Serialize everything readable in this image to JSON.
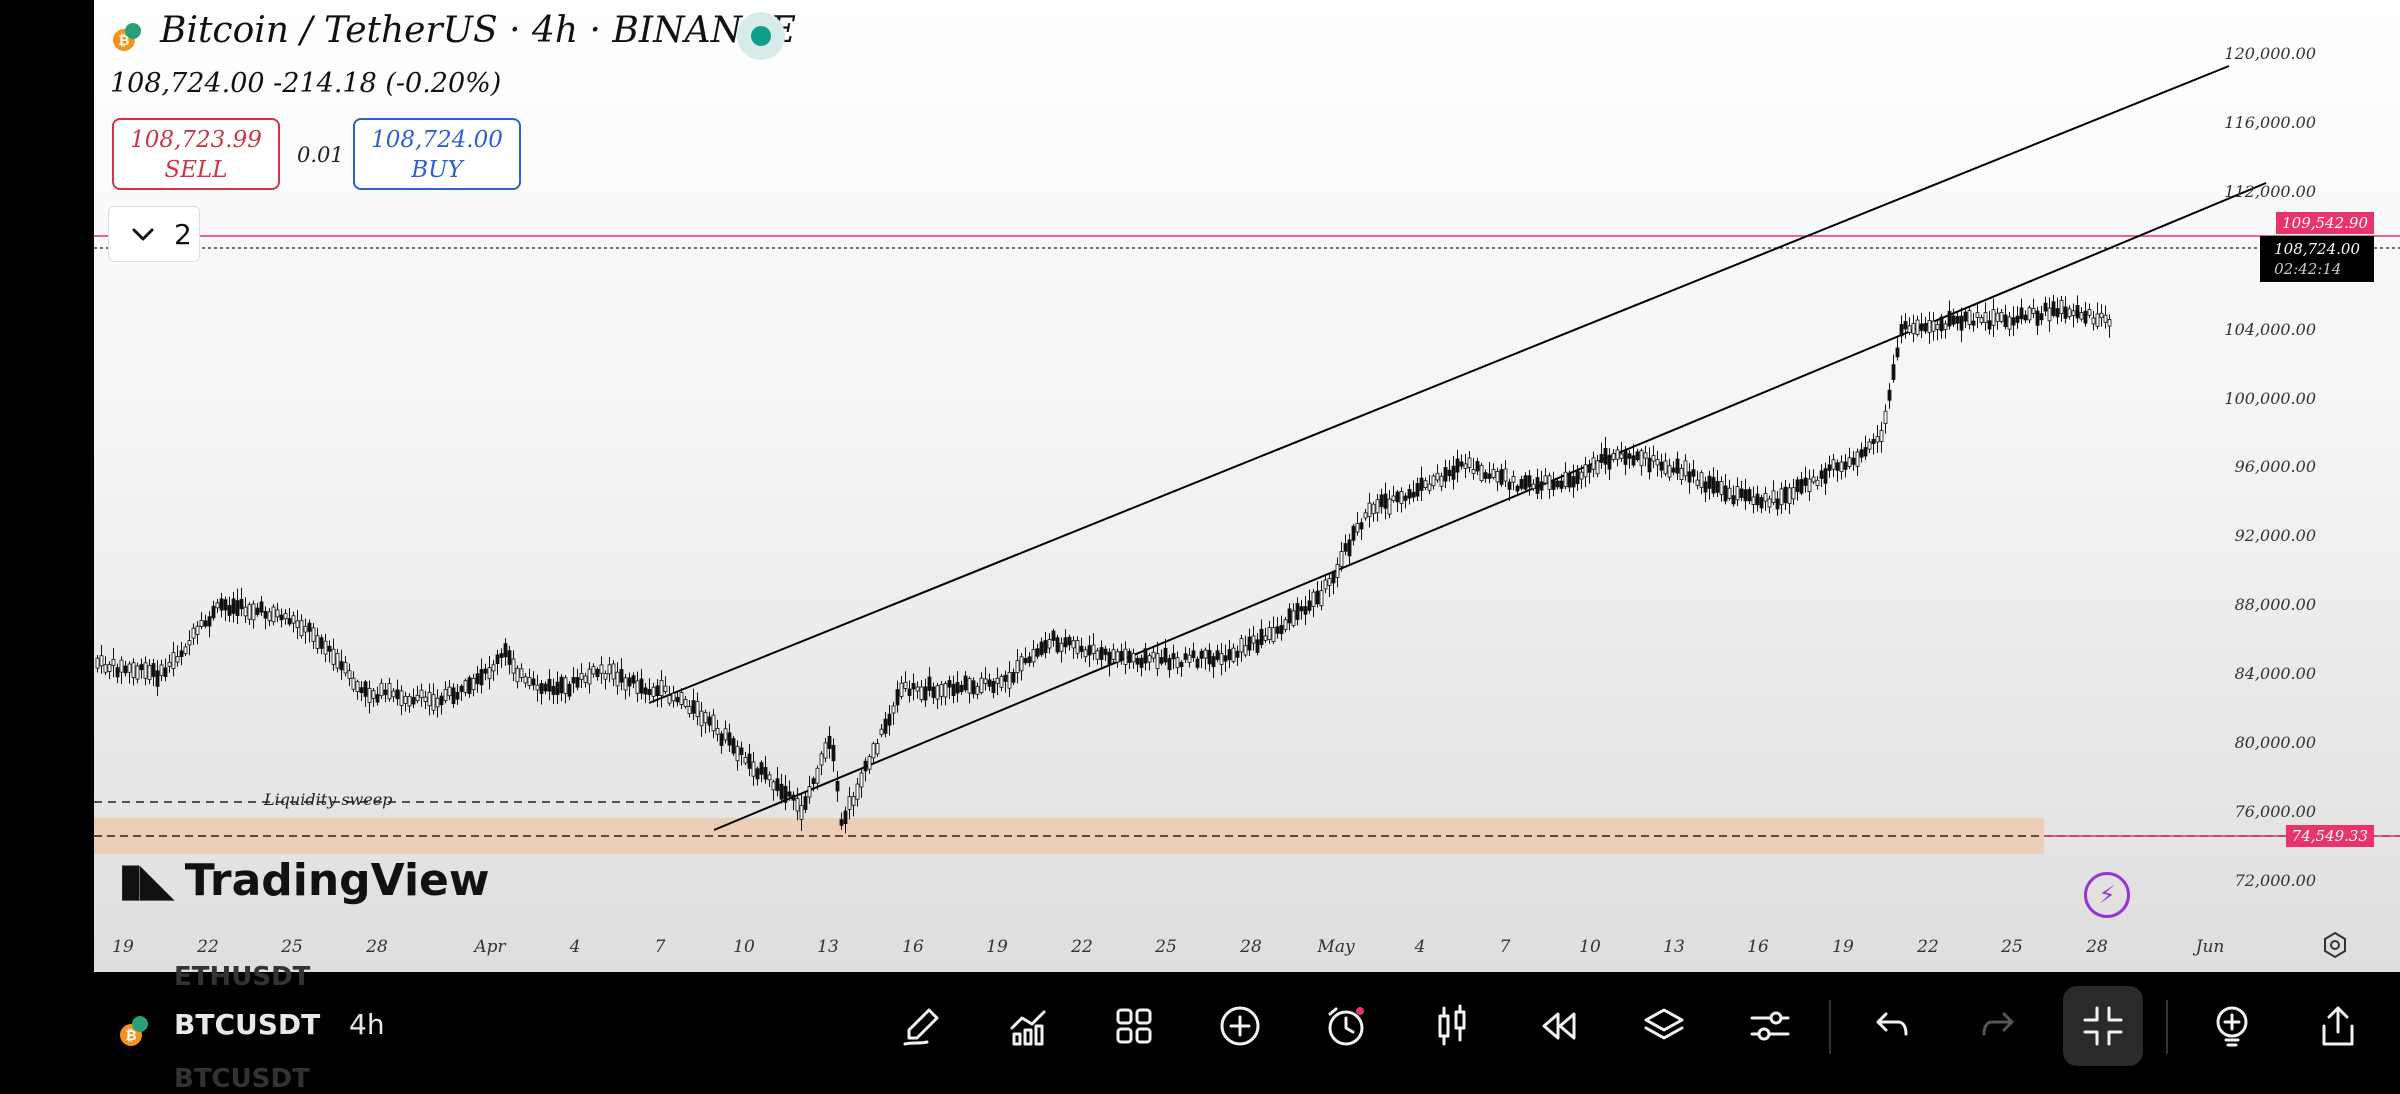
{
  "header": {
    "symbol_title": "Bitcoin / TetherUS · 4h · BINANCE",
    "price_line": "108,724.00  -214.18 (-0.20%)",
    "sell_price": "108,723.99",
    "sell_label": "SELL",
    "spread": "0.01",
    "buy_price": "108,724.00",
    "buy_label": "BUY",
    "indicator_count": "2"
  },
  "chart": {
    "watermark": "TradingView",
    "y_axis_labels": [
      "120,000.00",
      "116,000.00",
      "112,000.00",
      "104,000.00",
      "100,000.00",
      "96,000.00",
      "92,000.00",
      "88,000.00",
      "84,000.00",
      "80,000.00",
      "76,000.00",
      "72,000.00"
    ],
    "x_axis_labels": [
      "19",
      "22",
      "25",
      "28",
      "Apr",
      "4",
      "7",
      "10",
      "13",
      "16",
      "19",
      "22",
      "25",
      "28",
      "May",
      "4",
      "7",
      "10",
      "13",
      "16",
      "19",
      "22",
      "25",
      "28",
      "Jun"
    ],
    "resistance_tag": "109,542.90",
    "current_price_tag": "108,724.00",
    "countdown_tag": "02:42:14",
    "support_tag": "74,549.33",
    "annotation": "Liquidity sweep",
    "colors": {
      "accent_red": "#e8336b",
      "sell_red": "#d03546",
      "buy_blue": "#2f5fcf",
      "zone": "#eacbb0",
      "live_dot": "#109f8d"
    }
  },
  "bottom_bar": {
    "symbol": "BTCUSDT",
    "interval": "4h",
    "ghost_symbol_top": "ETHUSDT",
    "ghost_symbol_bottom": "BTCUSDT",
    "tools": [
      "brush-icon",
      "indicators-icon",
      "grid-icon",
      "add-circle-icon",
      "alarm-icon",
      "candles-icon",
      "replay-icon",
      "layers-icon",
      "settings-sliders-icon",
      "undo-icon",
      "redo-icon",
      "collapse-icon",
      "idea-icon",
      "share-icon"
    ]
  }
}
